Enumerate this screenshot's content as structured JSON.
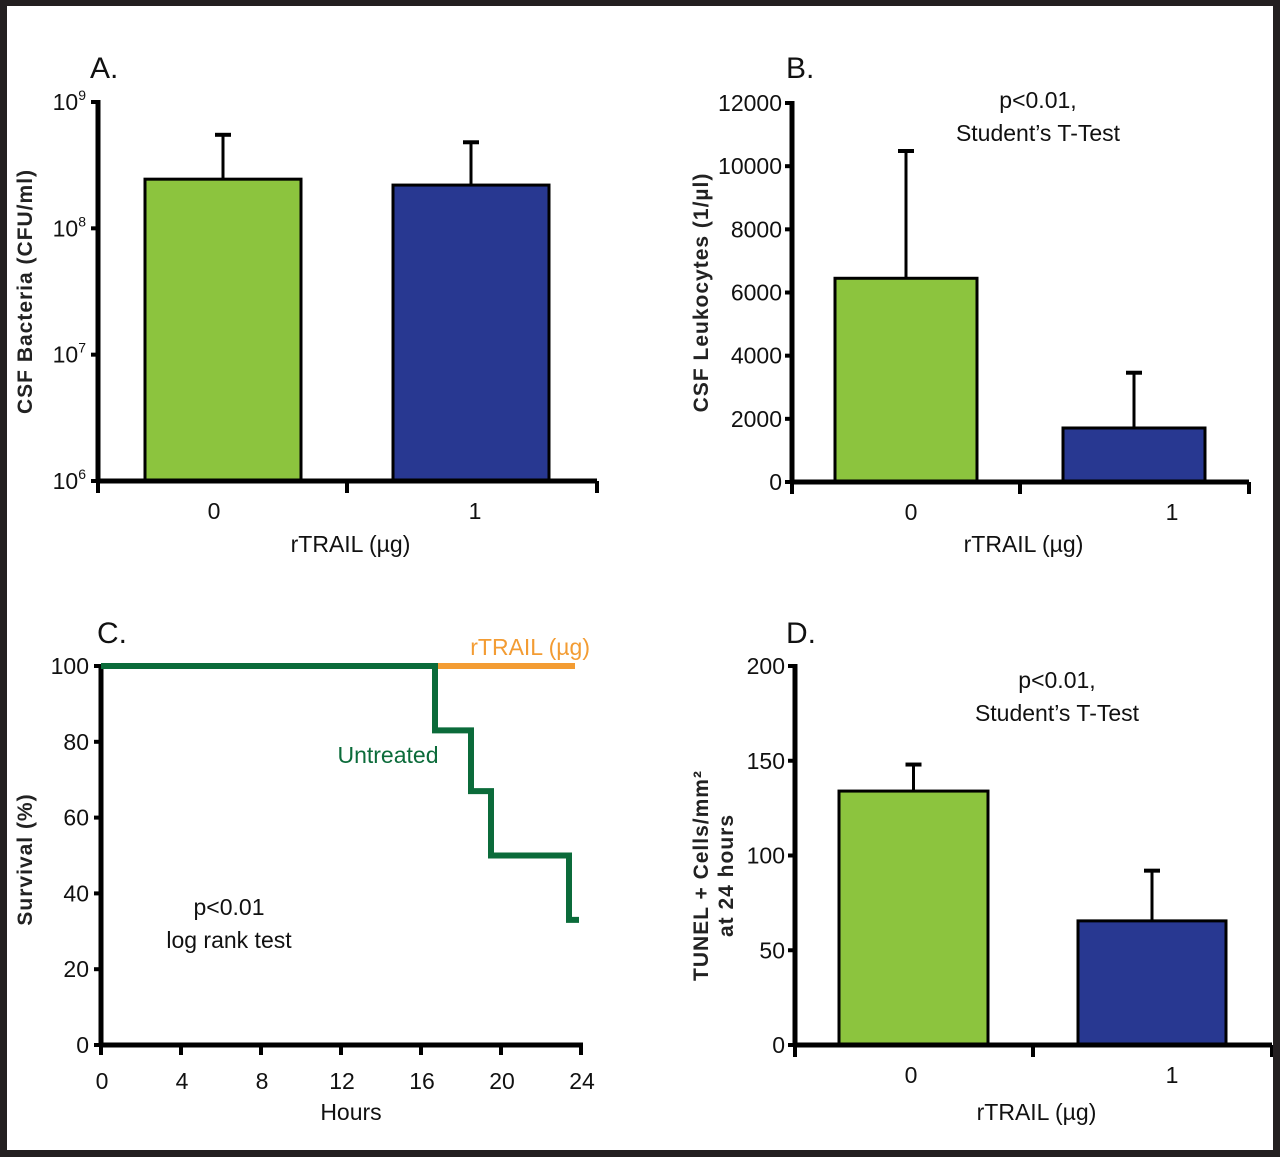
{
  "colors": {
    "untreated_bar": "#8cc43e",
    "treated_bar": "#283891",
    "untreated_line": "#0b6b3a",
    "treated_line": "#f39c33",
    "axis": "#000000",
    "frame": "#231f20"
  },
  "chart_data": [
    {
      "id": "A",
      "panel_label": "A.",
      "type": "bar",
      "yscale": "log",
      "title": "",
      "xlabel": "rTRAIL (µg)",
      "ylabel": "CSF Bacteria (CFU/ml)",
      "ylim": [
        1000000,
        1000000000
      ],
      "ytick_base": "10",
      "yticks": [
        {
          "value": 1000000,
          "exp": "6"
        },
        {
          "value": 10000000,
          "exp": "7"
        },
        {
          "value": 100000000,
          "exp": "8"
        },
        {
          "value": 1000000000,
          "exp": "9"
        }
      ],
      "categories": [
        "0",
        "1"
      ],
      "values": [
        245000000,
        220000000
      ],
      "error_upper": [
        550000000,
        480000000
      ],
      "annotation": []
    },
    {
      "id": "B",
      "panel_label": "B.",
      "type": "bar",
      "yscale": "linear",
      "title": "",
      "xlabel": "rTRAIL (µg)",
      "ylabel": "CSF Leukocytes (1/µl)",
      "ylim": [
        0,
        12000
      ],
      "yticks": [
        {
          "value": 0,
          "label": "0"
        },
        {
          "value": 2000,
          "label": "2000"
        },
        {
          "value": 4000,
          "label": "4000"
        },
        {
          "value": 6000,
          "label": "6000"
        },
        {
          "value": 8000,
          "label": "8000"
        },
        {
          "value": 10000,
          "label": "10000"
        },
        {
          "value": 12000,
          "label": "12000"
        }
      ],
      "categories": [
        "0",
        "1"
      ],
      "values": [
        6450,
        1710
      ],
      "error_upper": [
        10480,
        3460
      ],
      "annotation": [
        "p<0.01,",
        "Student’s T-Test"
      ]
    },
    {
      "id": "C",
      "panel_label": "C.",
      "type": "line",
      "subtype": "kaplan-meier step",
      "title": "",
      "xlabel": "Hours",
      "ylabel": "Survival (%)",
      "xlim": [
        0,
        24
      ],
      "ylim": [
        0,
        100
      ],
      "xticks": [
        "0",
        "4",
        "8",
        "12",
        "16",
        "20",
        "24"
      ],
      "yticks": [
        "0",
        "20",
        "40",
        "60",
        "80",
        "100"
      ],
      "series": [
        {
          "name": "Untreated",
          "color_key": "untreated_line",
          "x": [
            0,
            16.7,
            16.7,
            18.5,
            18.5,
            19.5,
            19.5,
            23.4,
            23.4,
            23.9
          ],
          "y": [
            100,
            100,
            83,
            83,
            67,
            67,
            50,
            50,
            33,
            33
          ]
        },
        {
          "name": "rTRAIL (µg)",
          "color_key": "treated_line",
          "x": [
            16.7,
            23.7
          ],
          "y": [
            100,
            100
          ]
        }
      ],
      "legend": [
        {
          "label": "rTRAIL (µg)",
          "placement": "top-right, above line"
        },
        {
          "label": "Untreated",
          "placement": "center, next to curve"
        }
      ],
      "annotation": [
        "p<0.01",
        "log rank test"
      ]
    },
    {
      "id": "D",
      "panel_label": "D.",
      "type": "bar",
      "yscale": "linear",
      "title": "",
      "xlabel": "rTRAIL (µg)",
      "ylabel": [
        "TUNEL + Cells/mm²",
        "at 24 hours"
      ],
      "ylim": [
        0,
        200
      ],
      "yticks": [
        {
          "value": 0,
          "label": "0"
        },
        {
          "value": 50,
          "label": "50"
        },
        {
          "value": 100,
          "label": "100"
        },
        {
          "value": 150,
          "label": "150"
        },
        {
          "value": 200,
          "label": "200"
        }
      ],
      "categories": [
        "0",
        "1"
      ],
      "values": [
        134,
        65.5
      ],
      "error_upper": [
        148,
        92
      ],
      "annotation": [
        "p<0.01,",
        "Student’s T-Test"
      ]
    }
  ]
}
